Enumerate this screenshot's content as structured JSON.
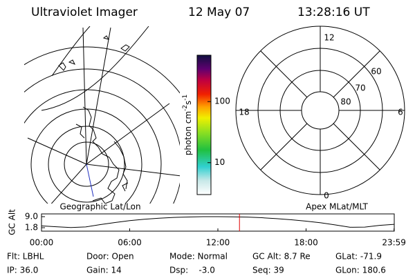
{
  "header": {
    "instrument": "Ultraviolet Imager",
    "date": "12 May 07",
    "time": "13:28:16 UT"
  },
  "left_panel": {
    "label": "Geographic Lat/Lon"
  },
  "right_panel": {
    "label": "Apex MLat/MLT",
    "mlt_labels": [
      "12",
      "6",
      "18",
      "0"
    ],
    "mlat_labels": [
      "60",
      "70",
      "80"
    ]
  },
  "colorbar": {
    "label": [
      "photon cm",
      "-2",
      "s",
      "-1"
    ],
    "lim": [
      3,
      575
    ],
    "ticks": [
      10,
      100
    ],
    "log": true
  },
  "chart_data": {
    "type": "line",
    "ylabel": "GC Alt",
    "x": [
      0,
      1,
      2,
      3,
      4,
      5,
      6,
      7,
      8,
      9,
      10,
      11,
      12,
      13,
      14,
      15,
      16,
      17,
      18,
      19,
      20,
      21,
      22,
      23,
      24
    ],
    "values": [
      3.0,
      2.4,
      1.9,
      2.3,
      3.8,
      5.2,
      6.4,
      7.3,
      8.0,
      8.5,
      8.8,
      9.0,
      9.0,
      8.9,
      8.7,
      8.3,
      7.7,
      7.0,
      6.1,
      5.0,
      3.6,
      2.1,
      2.2,
      3.3,
      4.0
    ],
    "xlim": [
      0,
      24
    ],
    "ylim": [
      -0.45,
      10.8
    ],
    "yticks": [
      1.8,
      {
        "value": 9,
        "label": "9.0"
      }
    ],
    "xticks": [
      {
        "value": 0,
        "label": "00:00"
      },
      {
        "value": 6,
        "label": "06:00"
      },
      {
        "value": 12,
        "label": "12:00"
      },
      {
        "value": 18,
        "label": "18:00"
      },
      {
        "value": 23.9833,
        "label": "23:59"
      }
    ],
    "marker": 13.47,
    "marker_color": "#e00000",
    "color": "#000000"
  },
  "info": [
    [
      "Flt: LBHL",
      "Door: Open",
      "Mode: Normal",
      "GC Alt: 8.7 Re",
      "GLat: -71.9"
    ],
    [
      "IP: 36.0",
      "Gain: 14",
      "Dsp:    -3.0",
      "Seq: 39",
      "GLon: 180.6"
    ]
  ]
}
